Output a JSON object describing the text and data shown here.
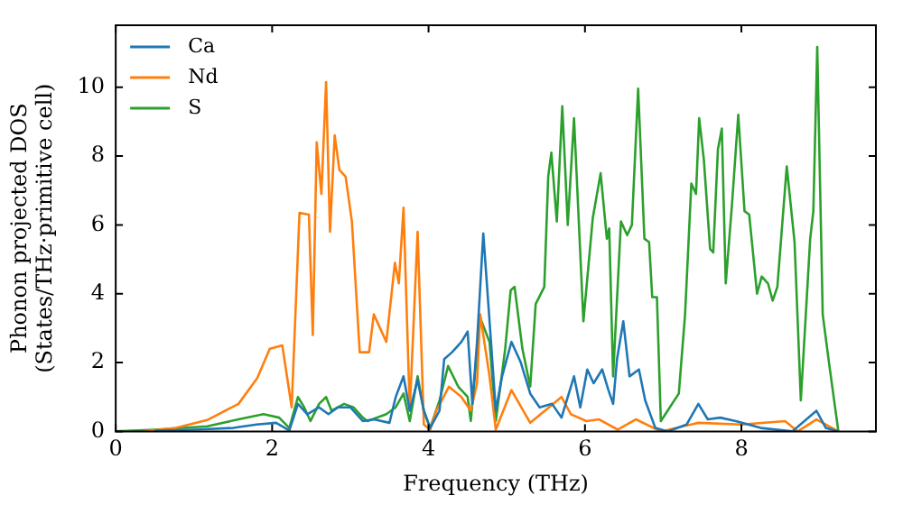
{
  "chart_data": {
    "type": "line",
    "xlabel": "Frequency (THz)",
    "ylabel": "Phonon projected DOS\n(States/THz·primitive cell)",
    "xlim": [
      0,
      9.72
    ],
    "ylim": [
      0,
      11.8
    ],
    "xticks": [
      0,
      2,
      4,
      6,
      8
    ],
    "yticks": [
      0,
      2,
      4,
      6,
      8,
      10
    ],
    "grid": false,
    "legend": "top left",
    "marker": "none",
    "line_style": "solid",
    "series": [
      {
        "name": "Ca",
        "color": "#1f77b4",
        "x": [
          0.5,
          1,
          1.5,
          1.8,
          2.05,
          2.22,
          2.33,
          2.45,
          2.6,
          2.72,
          2.84,
          3.0,
          3.16,
          3.3,
          3.5,
          3.58,
          3.68,
          3.76,
          3.86,
          3.94,
          4.02,
          4.14,
          4.2,
          4.3,
          4.42,
          4.5,
          4.56,
          4.62,
          4.7,
          4.78,
          4.86,
          4.94,
          5.06,
          5.18,
          5.3,
          5.42,
          5.58,
          5.7,
          5.86,
          5.94,
          6.03,
          6.11,
          6.22,
          6.3,
          6.36,
          6.41,
          6.49,
          6.57,
          6.69,
          6.77,
          6.9,
          7.06,
          7.3,
          7.45,
          7.57,
          7.73,
          7.93,
          8.25,
          8.65,
          8.96,
          9.08,
          9.24
        ],
        "values": [
          0.02,
          0.05,
          0.1,
          0.2,
          0.25,
          0.03,
          0.8,
          0.5,
          0.7,
          0.5,
          0.7,
          0.7,
          0.3,
          0.35,
          0.25,
          1.0,
          1.6,
          0.6,
          1.5,
          0.6,
          0.1,
          0.6,
          2.1,
          2.3,
          2.6,
          2.9,
          0.8,
          2.6,
          5.75,
          3.2,
          0.6,
          1.6,
          2.6,
          2.0,
          1.1,
          0.7,
          0.8,
          0.4,
          1.6,
          0.7,
          1.8,
          1.4,
          1.8,
          1.2,
          0.8,
          2.1,
          3.2,
          1.6,
          1.8,
          0.9,
          0.1,
          0,
          0.2,
          0.8,
          0.35,
          0.4,
          0.3,
          0.1,
          0,
          0.6,
          0.1,
          0
        ]
      },
      {
        "name": "Nd",
        "color": "#ff7f0e",
        "x": [
          0.37,
          0.77,
          1.17,
          1.57,
          1.81,
          1.97,
          2.13,
          2.25,
          2.35,
          2.47,
          2.52,
          2.57,
          2.63,
          2.69,
          2.74,
          2.8,
          2.86,
          2.94,
          3.02,
          3.12,
          3.24,
          3.3,
          3.46,
          3.57,
          3.62,
          3.68,
          3.76,
          3.86,
          3.94,
          4.02,
          4.1,
          4.26,
          4.42,
          4.54,
          4.62,
          4.66,
          4.78,
          4.86,
          5.06,
          5.3,
          5.54,
          5.7,
          5.82,
          6.02,
          6.18,
          6.42,
          6.65,
          6.97,
          7.45,
          8.0,
          8.56,
          8.72,
          8.96,
          9.24
        ],
        "values": [
          0,
          0.1,
          0.33,
          0.8,
          1.55,
          2.4,
          2.5,
          0.7,
          6.35,
          6.3,
          2.8,
          8.4,
          6.9,
          10.15,
          5.8,
          8.6,
          7.6,
          7.4,
          6.1,
          2.3,
          2.3,
          3.4,
          2.6,
          4.9,
          4.3,
          6.5,
          0.6,
          5.8,
          0.2,
          0.05,
          0.6,
          1.3,
          1.0,
          0.6,
          1.4,
          3.4,
          1.6,
          0.05,
          1.2,
          0.25,
          0.7,
          1.0,
          0.5,
          0.3,
          0.35,
          0.05,
          0.35,
          0,
          0.25,
          0.2,
          0.3,
          0,
          0.35,
          0
        ]
      },
      {
        "name": "S",
        "color": "#2ca02c",
        "x": [
          0,
          0.5,
          1.17,
          1.57,
          1.89,
          2.09,
          2.22,
          2.33,
          2.41,
          2.49,
          2.6,
          2.69,
          2.76,
          2.92,
          3.04,
          3.16,
          3.22,
          3.46,
          3.58,
          3.68,
          3.76,
          3.86,
          3.94,
          4.02,
          4.14,
          4.25,
          4.38,
          4.5,
          4.54,
          4.66,
          4.78,
          4.86,
          4.98,
          5.05,
          5.1,
          5.2,
          5.3,
          5.37,
          5.48,
          5.53,
          5.57,
          5.64,
          5.71,
          5.78,
          5.86,
          5.98,
          6.1,
          6.2,
          6.28,
          6.31,
          6.36,
          6.46,
          6.54,
          6.6,
          6.68,
          6.76,
          6.82,
          6.86,
          6.92,
          6.97,
          7.2,
          7.28,
          7.36,
          7.42,
          7.46,
          7.52,
          7.6,
          7.64,
          7.7,
          7.75,
          7.8,
          7.88,
          7.96,
          8.04,
          8.1,
          8.2,
          8.26,
          8.34,
          8.4,
          8.46,
          8.58,
          8.68,
          8.76,
          8.88,
          8.92,
          8.97,
          9.04,
          9.12,
          9.24
        ],
        "values": [
          0,
          0.05,
          0.15,
          0.35,
          0.5,
          0.4,
          0.1,
          1.0,
          0.7,
          0.3,
          0.8,
          1.0,
          0.6,
          0.8,
          0.7,
          0.4,
          0.3,
          0.5,
          0.7,
          1.1,
          0.3,
          1.6,
          0.6,
          0.1,
          0.9,
          1.9,
          1.3,
          1.0,
          0.3,
          3.3,
          2.6,
          0.3,
          2.4,
          4.1,
          4.2,
          2.4,
          1.3,
          3.7,
          4.2,
          7.4,
          8.1,
          6.1,
          9.45,
          6.0,
          9.1,
          3.2,
          6.2,
          7.5,
          5.6,
          5.9,
          1.6,
          6.1,
          5.7,
          6.0,
          9.96,
          5.6,
          5.5,
          3.9,
          3.9,
          0.3,
          1.1,
          3.4,
          7.2,
          6.9,
          9.1,
          7.9,
          5.3,
          5.2,
          8.2,
          8.8,
          4.3,
          6.6,
          9.2,
          6.4,
          6.3,
          4.0,
          4.5,
          4.3,
          3.8,
          4.2,
          7.7,
          5.5,
          0.9,
          5.6,
          6.4,
          11.17,
          3.4,
          2.0,
          0
        ]
      }
    ]
  }
}
